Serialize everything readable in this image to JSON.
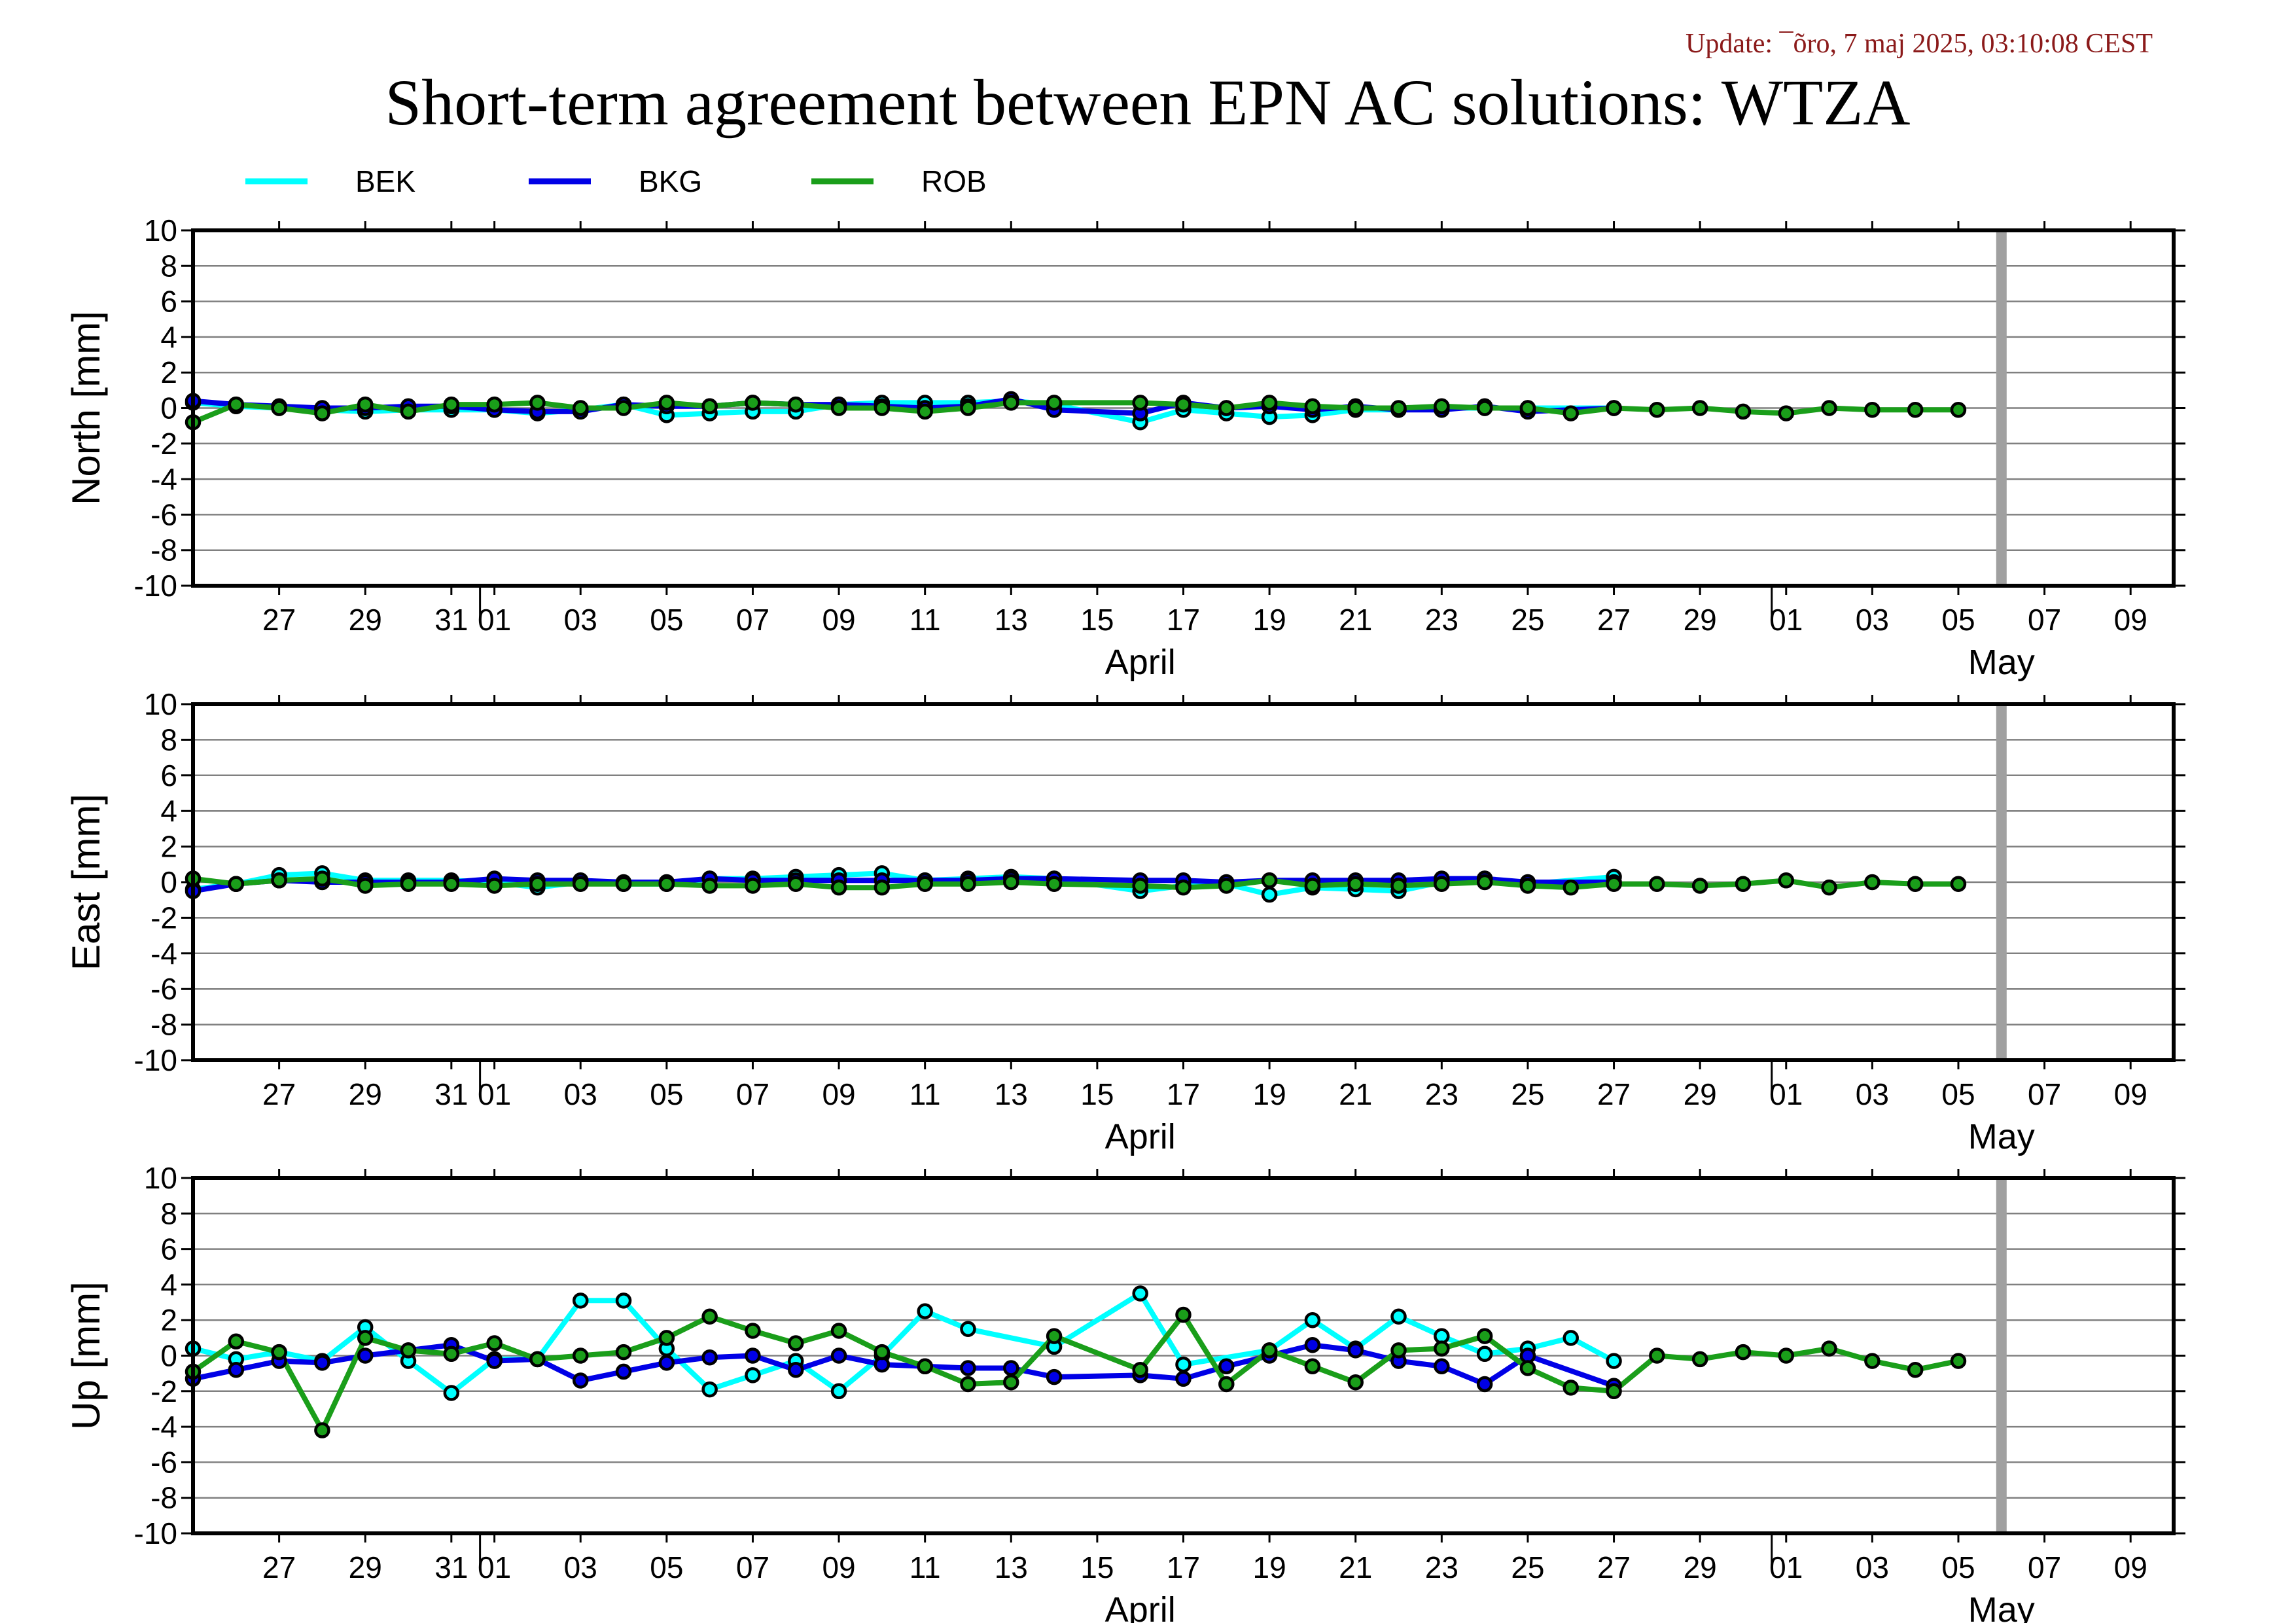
{
  "update_text": "Update: ¯õro, 7 maj 2025, 03:10:08 CEST",
  "title": "Short-term agreement between EPN AC solutions: WTZA",
  "colors": {
    "BEK": "#00ffff",
    "BKG": "#0000e6",
    "ROB": "#1a9e1a",
    "grid": "#808080",
    "marker_bar": "#a0a0a0"
  },
  "legend": [
    {
      "name": "BEK",
      "color": "#00ffff"
    },
    {
      "name": "BKG",
      "color": "#0000e6"
    },
    {
      "name": "ROB",
      "color": "#1a9e1a"
    }
  ],
  "x_axis": {
    "start_date": "2025-03-25",
    "end_date": "2025-05-10",
    "tick_dates": [
      "2025-03-27",
      "2025-03-29",
      "2025-03-31",
      "2025-04-01",
      "2025-04-03",
      "2025-04-05",
      "2025-04-07",
      "2025-04-09",
      "2025-04-11",
      "2025-04-13",
      "2025-04-15",
      "2025-04-17",
      "2025-04-19",
      "2025-04-21",
      "2025-04-23",
      "2025-04-25",
      "2025-04-27",
      "2025-04-29",
      "2025-05-01",
      "2025-05-03",
      "2025-05-05",
      "2025-05-07",
      "2025-05-09"
    ],
    "tick_labels": [
      "27",
      "29",
      "31",
      "01",
      "03",
      "05",
      "07",
      "09",
      "11",
      "13",
      "15",
      "17",
      "19",
      "21",
      "23",
      "25",
      "27",
      "29",
      "01",
      "03",
      "05",
      "07",
      "09"
    ],
    "month_boundaries": [
      "2025-04-01",
      "2025-05-01"
    ],
    "month_labels": [
      {
        "label": "April",
        "date": "2025-04-16"
      },
      {
        "label": "May",
        "date": "2025-05-06"
      }
    ],
    "current_date_marker": "2025-05-06"
  },
  "chart_data": [
    {
      "type": "line",
      "ylabel": "North [mm]",
      "ylim": [
        -10,
        10
      ],
      "yticks": [
        10,
        8,
        6,
        4,
        2,
        0,
        -2,
        -4,
        -6,
        -8,
        -10
      ],
      "grid": true,
      "series": [
        {
          "name": "BEK",
          "x": [
            "2025-03-25",
            "2025-03-26",
            "2025-03-27",
            "2025-03-28",
            "2025-03-29",
            "2025-03-30",
            "2025-03-31",
            "2025-04-01",
            "2025-04-02",
            "2025-04-03",
            "2025-04-04",
            "2025-04-05",
            "2025-04-06",
            "2025-04-07",
            "2025-04-08",
            "2025-04-09",
            "2025-04-10",
            "2025-04-11",
            "2025-04-12",
            "2025-04-13",
            "2025-04-14",
            "2025-04-16",
            "2025-04-17",
            "2025-04-18",
            "2025-04-19",
            "2025-04-20",
            "2025-04-21",
            "2025-04-22",
            "2025-04-23",
            "2025-04-24",
            "2025-04-25",
            "2025-04-27"
          ],
          "y": [
            0.3,
            0.1,
            0.0,
            -0.1,
            -0.2,
            -0.1,
            -0.1,
            -0.1,
            -0.3,
            -0.1,
            0.2,
            -0.4,
            -0.3,
            -0.2,
            -0.2,
            0.2,
            0.3,
            0.3,
            0.3,
            0.4,
            0.2,
            -0.8,
            -0.1,
            -0.3,
            -0.5,
            -0.4,
            -0.1,
            -0.1,
            0.0,
            0.0,
            0.0,
            0.0
          ]
        },
        {
          "name": "BKG",
          "x": [
            "2025-03-25",
            "2025-03-26",
            "2025-03-27",
            "2025-03-28",
            "2025-03-29",
            "2025-03-30",
            "2025-03-31",
            "2025-04-01",
            "2025-04-02",
            "2025-04-03",
            "2025-04-04",
            "2025-04-05",
            "2025-04-06",
            "2025-04-07",
            "2025-04-08",
            "2025-04-09",
            "2025-04-10",
            "2025-04-11",
            "2025-04-12",
            "2025-04-13",
            "2025-04-14",
            "2025-04-16",
            "2025-04-17",
            "2025-04-18",
            "2025-04-19",
            "2025-04-20",
            "2025-04-21",
            "2025-04-22",
            "2025-04-23",
            "2025-04-24",
            "2025-04-25",
            "2025-04-27"
          ],
          "y": [
            0.4,
            0.2,
            0.1,
            0.0,
            0.0,
            0.1,
            0.1,
            -0.1,
            -0.2,
            -0.2,
            0.2,
            0.1,
            0.1,
            0.3,
            0.2,
            0.2,
            0.1,
            0.0,
            0.1,
            0.5,
            -0.1,
            -0.3,
            0.3,
            0.0,
            0.1,
            -0.1,
            0.1,
            -0.1,
            -0.1,
            0.1,
            -0.2,
            0.0
          ]
        },
        {
          "name": "ROB",
          "x": [
            "2025-03-25",
            "2025-03-26",
            "2025-03-27",
            "2025-03-28",
            "2025-03-29",
            "2025-03-30",
            "2025-03-31",
            "2025-04-01",
            "2025-04-02",
            "2025-04-03",
            "2025-04-04",
            "2025-04-05",
            "2025-04-06",
            "2025-04-07",
            "2025-04-08",
            "2025-04-09",
            "2025-04-10",
            "2025-04-11",
            "2025-04-12",
            "2025-04-13",
            "2025-04-14",
            "2025-04-16",
            "2025-04-17",
            "2025-04-18",
            "2025-04-19",
            "2025-04-20",
            "2025-04-21",
            "2025-04-22",
            "2025-04-23",
            "2025-04-24",
            "2025-04-25",
            "2025-04-26",
            "2025-04-27",
            "2025-04-28",
            "2025-04-29",
            "2025-04-30",
            "2025-05-01",
            "2025-05-02",
            "2025-05-03",
            "2025-05-04",
            "2025-05-05"
          ],
          "y": [
            -0.8,
            0.2,
            0.0,
            -0.3,
            0.2,
            -0.2,
            0.2,
            0.2,
            0.3,
            0.0,
            0.0,
            0.3,
            0.1,
            0.3,
            0.2,
            0.0,
            0.0,
            -0.2,
            0.0,
            0.3,
            0.3,
            0.3,
            0.2,
            0.0,
            0.3,
            0.1,
            0.0,
            0.0,
            0.1,
            0.0,
            0.0,
            -0.3,
            0.0,
            -0.1,
            0.0,
            -0.2,
            -0.3,
            0.0,
            -0.1,
            -0.1,
            -0.1
          ]
        }
      ]
    },
    {
      "type": "line",
      "ylabel": "East [mm]",
      "ylim": [
        -10,
        10
      ],
      "yticks": [
        10,
        8,
        6,
        4,
        2,
        0,
        -2,
        -4,
        -6,
        -8,
        -10
      ],
      "grid": true,
      "series": [
        {
          "name": "BEK",
          "x": [
            "2025-03-25",
            "2025-03-26",
            "2025-03-27",
            "2025-03-28",
            "2025-03-29",
            "2025-03-30",
            "2025-03-31",
            "2025-04-01",
            "2025-04-02",
            "2025-04-03",
            "2025-04-04",
            "2025-04-05",
            "2025-04-06",
            "2025-04-07",
            "2025-04-08",
            "2025-04-09",
            "2025-04-10",
            "2025-04-11",
            "2025-04-12",
            "2025-04-13",
            "2025-04-14",
            "2025-04-16",
            "2025-04-17",
            "2025-04-18",
            "2025-04-19",
            "2025-04-20",
            "2025-04-21",
            "2025-04-22",
            "2025-04-23",
            "2025-04-24",
            "2025-04-25",
            "2025-04-27"
          ],
          "y": [
            -0.4,
            -0.1,
            0.4,
            0.5,
            0.1,
            0.1,
            0.1,
            0.0,
            -0.3,
            0.0,
            -0.1,
            -0.1,
            0.2,
            0.2,
            0.3,
            0.4,
            0.5,
            0.1,
            0.2,
            0.3,
            0.2,
            -0.5,
            -0.2,
            -0.1,
            -0.7,
            -0.3,
            -0.4,
            -0.5,
            0.0,
            0.2,
            -0.1,
            0.3
          ]
        },
        {
          "name": "BKG",
          "x": [
            "2025-03-25",
            "2025-03-26",
            "2025-03-27",
            "2025-03-28",
            "2025-03-29",
            "2025-03-30",
            "2025-03-31",
            "2025-04-01",
            "2025-04-02",
            "2025-04-03",
            "2025-04-04",
            "2025-04-05",
            "2025-04-06",
            "2025-04-07",
            "2025-04-08",
            "2025-04-09",
            "2025-04-10",
            "2025-04-11",
            "2025-04-12",
            "2025-04-13",
            "2025-04-14",
            "2025-04-16",
            "2025-04-17",
            "2025-04-18",
            "2025-04-19",
            "2025-04-20",
            "2025-04-21",
            "2025-04-22",
            "2025-04-23",
            "2025-04-24",
            "2025-04-25",
            "2025-04-27"
          ],
          "y": [
            -0.5,
            -0.1,
            0.1,
            0.0,
            0.0,
            0.0,
            0.0,
            0.2,
            0.1,
            0.1,
            0.0,
            0.0,
            0.2,
            0.1,
            0.1,
            0.1,
            0.1,
            0.1,
            0.1,
            0.2,
            0.2,
            0.1,
            0.1,
            0.0,
            0.1,
            0.1,
            0.1,
            0.1,
            0.2,
            0.2,
            0.0,
            0.0
          ]
        },
        {
          "name": "ROB",
          "x": [
            "2025-03-25",
            "2025-03-26",
            "2025-03-27",
            "2025-03-28",
            "2025-03-29",
            "2025-03-30",
            "2025-03-31",
            "2025-04-01",
            "2025-04-02",
            "2025-04-03",
            "2025-04-04",
            "2025-04-05",
            "2025-04-06",
            "2025-04-07",
            "2025-04-08",
            "2025-04-09",
            "2025-04-10",
            "2025-04-11",
            "2025-04-12",
            "2025-04-13",
            "2025-04-14",
            "2025-04-16",
            "2025-04-17",
            "2025-04-18",
            "2025-04-19",
            "2025-04-20",
            "2025-04-21",
            "2025-04-22",
            "2025-04-23",
            "2025-04-24",
            "2025-04-25",
            "2025-04-26",
            "2025-04-27",
            "2025-04-28",
            "2025-04-29",
            "2025-04-30",
            "2025-05-01",
            "2025-05-02",
            "2025-05-03",
            "2025-05-04",
            "2025-05-05"
          ],
          "y": [
            0.2,
            -0.1,
            0.1,
            0.2,
            -0.2,
            -0.1,
            -0.1,
            -0.2,
            -0.1,
            -0.1,
            -0.1,
            -0.1,
            -0.2,
            -0.2,
            -0.1,
            -0.3,
            -0.3,
            -0.1,
            -0.1,
            0.0,
            -0.1,
            -0.2,
            -0.3,
            -0.2,
            0.1,
            -0.2,
            -0.1,
            -0.2,
            -0.1,
            0.0,
            -0.2,
            -0.3,
            -0.1,
            -0.1,
            -0.2,
            -0.1,
            0.1,
            -0.3,
            0.0,
            -0.1,
            -0.1
          ]
        }
      ]
    },
    {
      "type": "line",
      "ylabel": "Up [mm]",
      "ylim": [
        -10,
        10
      ],
      "yticks": [
        10,
        8,
        6,
        4,
        2,
        0,
        -2,
        -4,
        -6,
        -8,
        -10
      ],
      "grid": true,
      "series": [
        {
          "name": "BEK",
          "x": [
            "2025-03-25",
            "2025-03-26",
            "2025-03-27",
            "2025-03-28",
            "2025-03-29",
            "2025-03-30",
            "2025-03-31",
            "2025-04-01",
            "2025-04-02",
            "2025-04-03",
            "2025-04-04",
            "2025-04-05",
            "2025-04-06",
            "2025-04-07",
            "2025-04-08",
            "2025-04-09",
            "2025-04-10",
            "2025-04-11",
            "2025-04-12",
            "2025-04-14",
            "2025-04-16",
            "2025-04-17",
            "2025-04-19",
            "2025-04-20",
            "2025-04-21",
            "2025-04-22",
            "2025-04-23",
            "2025-04-24",
            "2025-04-25",
            "2025-04-26",
            "2025-04-27"
          ],
          "y": [
            0.4,
            -0.2,
            0.2,
            -0.3,
            1.6,
            -0.3,
            -2.1,
            -0.2,
            -0.2,
            3.1,
            3.1,
            0.4,
            -1.9,
            -1.1,
            -0.3,
            -2.0,
            0.0,
            2.5,
            1.5,
            0.5,
            3.5,
            -0.5,
            0.3,
            2.0,
            0.4,
            2.2,
            1.1,
            0.1,
            0.4,
            1.0,
            -0.3
          ]
        },
        {
          "name": "BKG",
          "x": [
            "2025-03-25",
            "2025-03-26",
            "2025-03-27",
            "2025-03-28",
            "2025-03-29",
            "2025-03-30",
            "2025-03-31",
            "2025-04-01",
            "2025-04-02",
            "2025-04-03",
            "2025-04-04",
            "2025-04-05",
            "2025-04-06",
            "2025-04-07",
            "2025-04-08",
            "2025-04-09",
            "2025-04-10",
            "2025-04-11",
            "2025-04-12",
            "2025-04-13",
            "2025-04-14",
            "2025-04-16",
            "2025-04-17",
            "2025-04-18",
            "2025-04-19",
            "2025-04-20",
            "2025-04-21",
            "2025-04-22",
            "2025-04-23",
            "2025-04-24",
            "2025-04-25",
            "2025-04-27"
          ],
          "y": [
            -1.3,
            -0.8,
            -0.3,
            -0.4,
            0.0,
            0.3,
            0.6,
            -0.3,
            -0.2,
            -1.4,
            -0.9,
            -0.4,
            -0.1,
            0.0,
            -0.8,
            0.0,
            -0.5,
            -0.6,
            -0.7,
            -0.7,
            -1.2,
            -1.1,
            -1.3,
            -0.6,
            0.0,
            0.6,
            0.3,
            -0.3,
            -0.6,
            -1.6,
            0.0,
            -1.7
          ]
        },
        {
          "name": "ROB",
          "x": [
            "2025-03-25",
            "2025-03-26",
            "2025-03-27",
            "2025-03-28",
            "2025-03-29",
            "2025-03-30",
            "2025-03-31",
            "2025-04-01",
            "2025-04-02",
            "2025-04-03",
            "2025-04-04",
            "2025-04-05",
            "2025-04-06",
            "2025-04-07",
            "2025-04-08",
            "2025-04-09",
            "2025-04-10",
            "2025-04-11",
            "2025-04-12",
            "2025-04-13",
            "2025-04-14",
            "2025-04-16",
            "2025-04-17",
            "2025-04-18",
            "2025-04-19",
            "2025-04-20",
            "2025-04-21",
            "2025-04-22",
            "2025-04-23",
            "2025-04-24",
            "2025-04-25",
            "2025-04-26",
            "2025-04-27",
            "2025-04-28",
            "2025-04-29",
            "2025-04-30",
            "2025-05-01",
            "2025-05-02",
            "2025-05-03",
            "2025-05-04",
            "2025-05-05"
          ],
          "y": [
            -0.9,
            0.8,
            0.2,
            -4.2,
            1.0,
            0.3,
            0.1,
            0.7,
            -0.2,
            0.0,
            0.2,
            1.0,
            2.2,
            1.4,
            0.7,
            1.4,
            0.2,
            -0.6,
            -1.6,
            -1.5,
            1.1,
            -0.8,
            2.3,
            -1.6,
            0.3,
            -0.6,
            -1.5,
            0.3,
            0.4,
            1.1,
            -0.7,
            -1.8,
            -2.0,
            0.0,
            -0.2,
            0.2,
            0.0,
            0.4,
            -0.3,
            -0.8,
            -0.3
          ]
        }
      ]
    }
  ]
}
